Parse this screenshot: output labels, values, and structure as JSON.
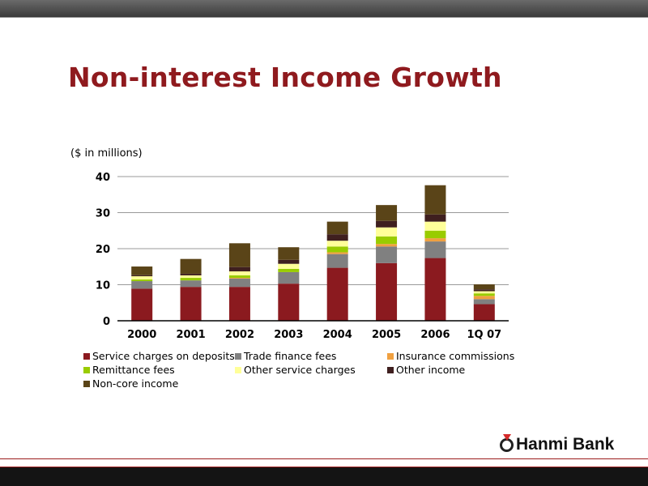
{
  "title": "Non-interest Income Growth",
  "units": "($ in millions)",
  "logo": "Hanmi Bank",
  "chart_data": {
    "type": "bar",
    "stacked": true,
    "title": "Non-interest Income Growth",
    "ylabel": "($ in millions)",
    "xlabel": "",
    "ylim": [
      0,
      40
    ],
    "yticks": [
      0,
      10,
      20,
      30,
      40
    ],
    "grid": true,
    "legend_position": "bottom",
    "categories": [
      "2000",
      "2001",
      "2002",
      "2003",
      "2004",
      "2005",
      "2006",
      "1Q 07"
    ],
    "series": [
      {
        "name": "Service charges on deposits",
        "color": "#8b1a1f",
        "values": [
          8.9,
          9.4,
          9.4,
          10.3,
          14.7,
          16.0,
          17.4,
          4.6
        ]
      },
      {
        "name": "Trade finance fees",
        "color": "#808080",
        "values": [
          2.1,
          1.8,
          2.3,
          3.2,
          3.8,
          4.6,
          4.6,
          1.4
        ]
      },
      {
        "name": "Insurance commissions",
        "color": "#f0a040",
        "values": [
          0.0,
          0.0,
          0.2,
          0.0,
          0.5,
          0.7,
          0.9,
          0.9
        ]
      },
      {
        "name": "Remittance fees",
        "color": "#99cc00",
        "values": [
          0.45,
          0.7,
          0.7,
          0.9,
          1.6,
          2.1,
          2.1,
          0.7
        ]
      },
      {
        "name": "Other service charges",
        "color": "#ffff99",
        "values": [
          0.9,
          0.7,
          1.1,
          1.4,
          1.6,
          2.5,
          2.5,
          0.6
        ]
      },
      {
        "name": "Other income",
        "color": "#3f1f1f",
        "values": [
          0.3,
          0.45,
          1.2,
          1.1,
          1.8,
          1.8,
          2.0,
          0.5
        ]
      },
      {
        "name": "Non-core income",
        "color": "#5a4418",
        "values": [
          2.4,
          4.1,
          6.6,
          3.5,
          3.5,
          4.4,
          8.1,
          1.4
        ]
      }
    ]
  }
}
